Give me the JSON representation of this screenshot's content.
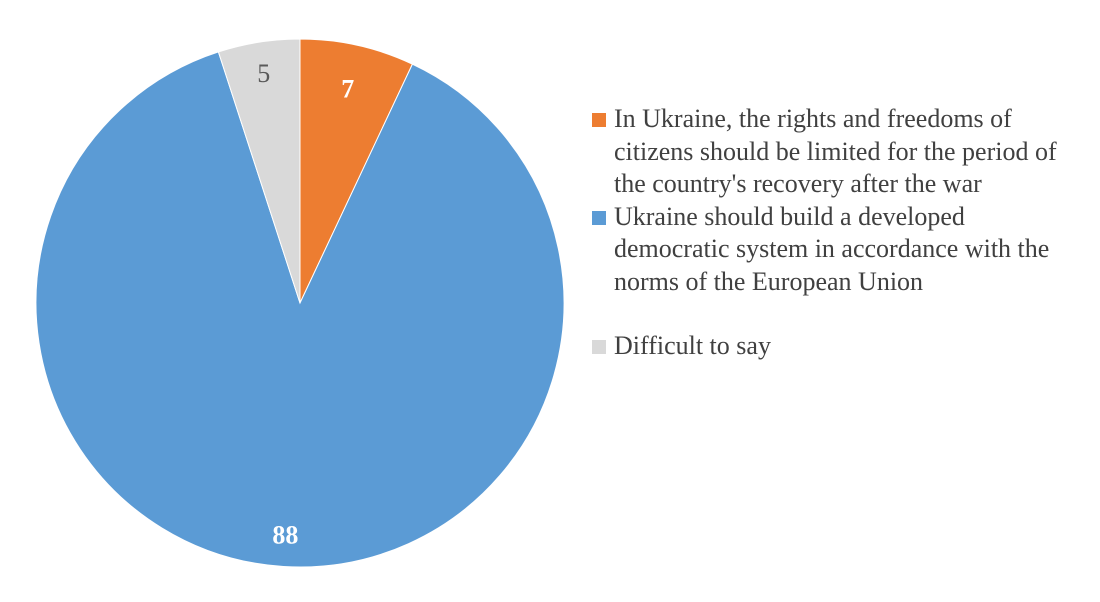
{
  "chart_data": {
    "type": "pie",
    "categories": [
      "In Ukraine, the rights and freedoms of citizens should be limited for the period of the country's recovery after the war",
      "Ukraine should build a developed democratic system in accordance with the norms of the European Union",
      "Difficult to say"
    ],
    "values": [
      7,
      88,
      5
    ],
    "data_labels": [
      "7",
      "88",
      "5"
    ],
    "colors": [
      "#ed7d31",
      "#5b9bd5",
      "#d9d9d9"
    ],
    "label_colors": [
      "#ffffff",
      "#ffffff",
      "#595959"
    ],
    "start_angle": "12 o'clock",
    "direction": "clockwise",
    "legend_placement": "right",
    "title": ""
  }
}
